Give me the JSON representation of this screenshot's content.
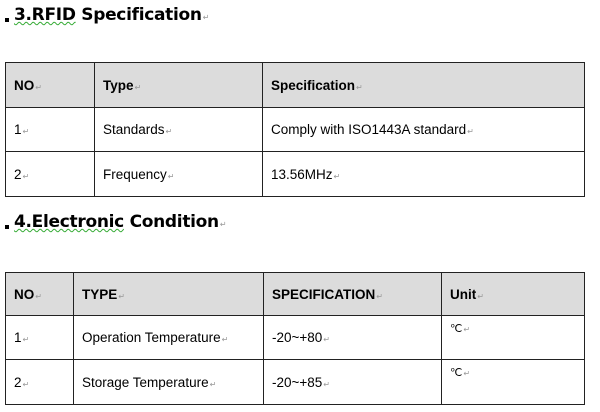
{
  "sections": [
    {
      "heading_num": "3.RFID",
      "heading_text": "Specification",
      "columns": [
        "NO",
        "Type",
        "Specification"
      ],
      "rows": [
        [
          "1",
          "Standards",
          "Comply with ISO1443A standard"
        ],
        [
          "2",
          "Frequency",
          "13.56MHz"
        ]
      ]
    },
    {
      "heading_num": "4.Electronic",
      "heading_text": "Condition",
      "columns": [
        "NO",
        "TYPE",
        "SPECIFICATION",
        "Unit"
      ],
      "rows": [
        [
          "1",
          "Operation Temperature",
          "-20~+80",
          "℃"
        ],
        [
          "2",
          "Storage Temperature",
          "-20~+85",
          "℃"
        ]
      ]
    }
  ]
}
